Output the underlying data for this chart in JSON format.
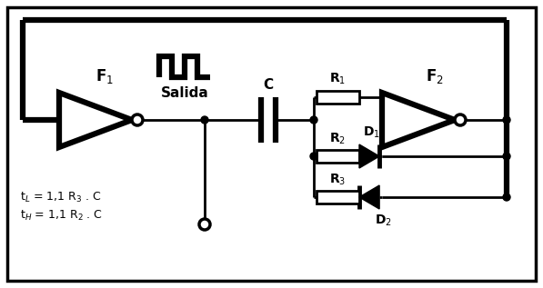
{
  "bg_color": "#ffffff",
  "line_color": "#000000",
  "lw": 2.0,
  "tlw": 4.5,
  "F1_label": "F$_1$",
  "F2_label": "F$_2$",
  "C_label": "C",
  "R1_label": "R$_1$",
  "R2_label": "R$_2$",
  "R3_label": "R$_3$",
  "D1_label": "D$_1$",
  "D2_label": "D$_2$",
  "salida_label": "Salida",
  "formula1": "t$_L$ = 1,1 R$_3$ . C",
  "formula2": "t$_H$ = 1,1 R$_2$ . C"
}
